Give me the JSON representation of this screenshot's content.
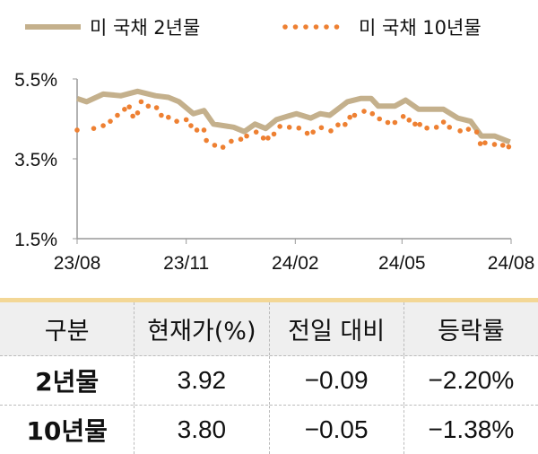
{
  "chart_data": {
    "type": "line",
    "legend_position": "top",
    "ylim": [
      1.5,
      5.5
    ],
    "y_ticks": [
      "5.5%",
      "3.5%",
      "1.5%"
    ],
    "y_tick_values": [
      5.5,
      3.5,
      1.5
    ],
    "x_ticks": [
      "23/08",
      "23/11",
      "24/02",
      "24/05",
      "24/08"
    ],
    "x_tick_values": [
      "2023-08-01",
      "2023-11-01",
      "2024-02-01",
      "2024-05-01",
      "2024-08-01"
    ],
    "grid": false,
    "series": [
      {
        "name": "미 국채 2년물",
        "style": "solid",
        "color": "#C4B08C",
        "x": [
          "2023-08-01",
          "2023-08-09",
          "2023-08-23",
          "2023-09-07",
          "2023-09-21",
          "2023-10-06",
          "2023-10-17",
          "2023-10-26",
          "2023-11-07",
          "2023-11-16",
          "2023-11-24",
          "2023-12-11",
          "2023-12-20",
          "2023-12-29",
          "2024-01-07",
          "2024-01-16",
          "2024-01-25",
          "2024-02-02",
          "2024-02-14",
          "2024-02-22",
          "2024-03-01",
          "2024-03-16",
          "2024-03-27",
          "2024-04-05",
          "2024-04-11",
          "2024-04-25",
          "2024-05-04",
          "2024-05-15",
          "2024-06-05",
          "2024-06-17",
          "2024-06-28",
          "2024-07-07",
          "2024-07-18",
          "2024-07-31"
        ],
        "y": [
          5.01,
          4.93,
          5.12,
          5.08,
          5.19,
          5.08,
          5.04,
          4.93,
          4.63,
          4.71,
          4.37,
          4.29,
          4.18,
          4.37,
          4.26,
          4.48,
          4.56,
          4.63,
          4.52,
          4.63,
          4.59,
          4.93,
          5.01,
          5.01,
          4.82,
          4.82,
          4.97,
          4.74,
          4.74,
          4.52,
          4.44,
          4.07,
          4.07,
          3.92
        ]
      },
      {
        "name": "미 국채 10년물",
        "style": "dotted",
        "color": "#EE8032",
        "x": [
          "2023-08-01",
          "2023-08-15",
          "2023-08-23",
          "2023-08-29",
          "2023-09-04",
          "2023-09-10",
          "2023-09-14",
          "2023-09-17",
          "2023-09-21",
          "2023-09-24",
          "2023-09-30",
          "2023-10-07",
          "2023-10-11",
          "2023-10-17",
          "2023-10-24",
          "2023-11-01",
          "2023-11-05",
          "2023-11-10",
          "2023-11-16",
          "2023-11-18",
          "2023-11-25",
          "2023-12-02",
          "2023-12-09",
          "2023-12-17",
          "2023-12-22",
          "2023-12-30",
          "2024-01-05",
          "2024-01-09",
          "2024-01-14",
          "2024-01-19",
          "2024-01-27",
          "2024-02-04",
          "2024-02-11",
          "2024-02-16",
          "2024-02-23",
          "2024-03-02",
          "2024-03-08",
          "2024-03-14",
          "2024-03-18",
          "2024-03-22",
          "2024-03-30",
          "2024-04-06",
          "2024-04-12",
          "2024-04-19",
          "2024-04-25",
          "2024-05-02",
          "2024-05-07",
          "2024-05-12",
          "2024-05-16",
          "2024-05-22",
          "2024-05-30",
          "2024-06-05",
          "2024-06-10",
          "2024-06-19",
          "2024-06-26",
          "2024-07-03",
          "2024-07-06",
          "2024-07-10",
          "2024-07-18",
          "2024-07-25",
          "2024-07-30"
        ],
        "y": [
          4.22,
          4.26,
          4.33,
          4.44,
          4.59,
          4.74,
          4.8,
          4.57,
          4.65,
          4.93,
          4.82,
          4.78,
          4.59,
          4.54,
          4.44,
          4.48,
          4.33,
          4.22,
          4.22,
          3.96,
          3.84,
          3.79,
          3.94,
          3.99,
          4.07,
          4.17,
          4.02,
          4.02,
          4.12,
          4.31,
          4.29,
          4.27,
          4.14,
          4.17,
          4.28,
          4.2,
          4.35,
          4.36,
          4.54,
          4.59,
          4.69,
          4.63,
          4.5,
          4.41,
          4.41,
          4.56,
          4.47,
          4.37,
          4.36,
          4.27,
          4.29,
          4.42,
          4.29,
          4.2,
          4.24,
          4.17,
          3.88,
          3.9,
          3.86,
          3.84,
          3.8
        ]
      }
    ]
  },
  "table": {
    "header_color": "#EFEFEF",
    "band_color": "#F3D796",
    "headers": [
      "구분",
      "현재가(%)",
      "전일 대비",
      "등락률"
    ],
    "rows": [
      [
        "2년물",
        "3.92",
        "−0.09",
        "−2.20%"
      ],
      [
        "10년물",
        "3.80",
        "−0.05",
        "−1.38%"
      ]
    ]
  }
}
